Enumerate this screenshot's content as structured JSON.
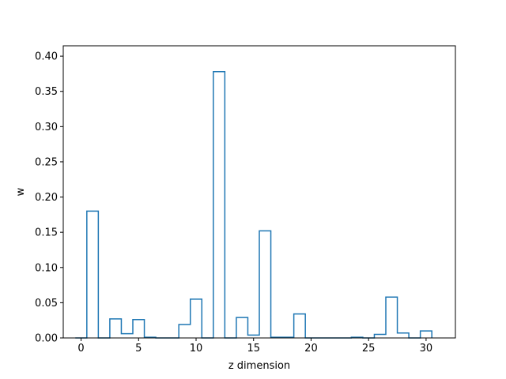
{
  "chart_data": {
    "type": "histogram-step",
    "title": "",
    "xlabel": "z dimension",
    "ylabel": "w",
    "xlim": [
      -1.55,
      32.55
    ],
    "ylim": [
      0,
      0.4147
    ],
    "xticks": [
      0,
      5,
      10,
      15,
      20,
      25,
      30
    ],
    "yticks": [
      0.0,
      0.05,
      0.1,
      0.15,
      0.2,
      0.25,
      0.3,
      0.35,
      0.4
    ],
    "ytick_labels": [
      "0.00",
      "0.05",
      "0.10",
      "0.15",
      "0.20",
      "0.25",
      "0.30",
      "0.35",
      "0.40"
    ],
    "bins": [
      0,
      1,
      2,
      3,
      4,
      5,
      6,
      7,
      8,
      9,
      10,
      11,
      12,
      13,
      14,
      15,
      16,
      17,
      18,
      19,
      20,
      21,
      22,
      23,
      24,
      25,
      26,
      27,
      28,
      29,
      30
    ],
    "bin_width": 1,
    "values": [
      0.0,
      0.18,
      0.0,
      0.027,
      0.006,
      0.026,
      0.001,
      0.0,
      0.0,
      0.019,
      0.055,
      0.0,
      0.378,
      0.0,
      0.029,
      0.004,
      0.152,
      0.001,
      0.001,
      0.034,
      0.0,
      0.0,
      0.0,
      0.0,
      0.001,
      0.0,
      0.005,
      0.058,
      0.007,
      0.0,
      0.01
    ],
    "color": "#1f77b4",
    "grid": false,
    "legend": "none"
  }
}
